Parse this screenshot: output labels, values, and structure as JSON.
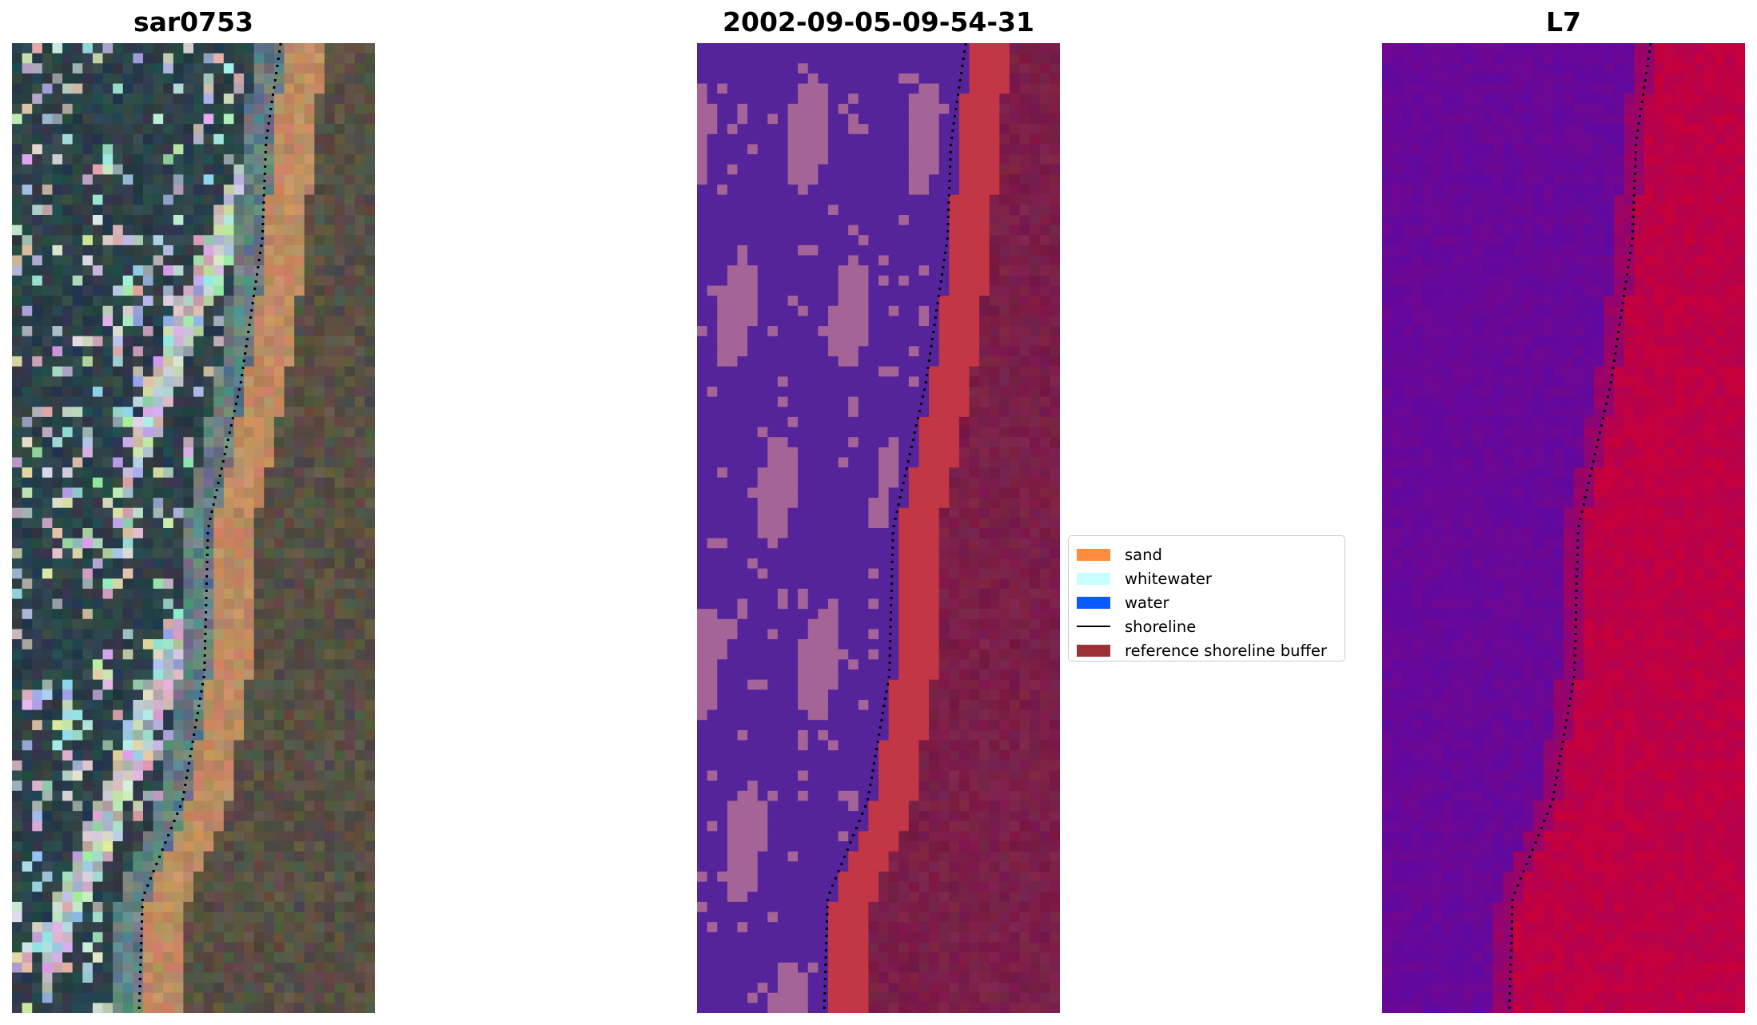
{
  "panels": [
    {
      "title": "sar0753"
    },
    {
      "title": "2002-09-05-09-54-31"
    },
    {
      "title": "L7"
    }
  ],
  "legend": {
    "items": [
      {
        "label": "sand",
        "color": "#ff8c3c"
      },
      {
        "label": "whitewater",
        "color": "#c8ffff"
      },
      {
        "label": "water",
        "color": "#0a5aff"
      },
      {
        "label": "shoreline",
        "color": "#000000"
      },
      {
        "label": "reference shoreline buffer",
        "color": "#9b3237"
      }
    ]
  },
  "colors": {
    "classified_water": "#55249a",
    "classified_whitewater_overlay": "#a46497",
    "classified_sand_overlay": "#c23646",
    "classified_land": "#7a1f48",
    "mndwi_low": "#5a09a6",
    "mndwi_high": "#c8003a"
  }
}
